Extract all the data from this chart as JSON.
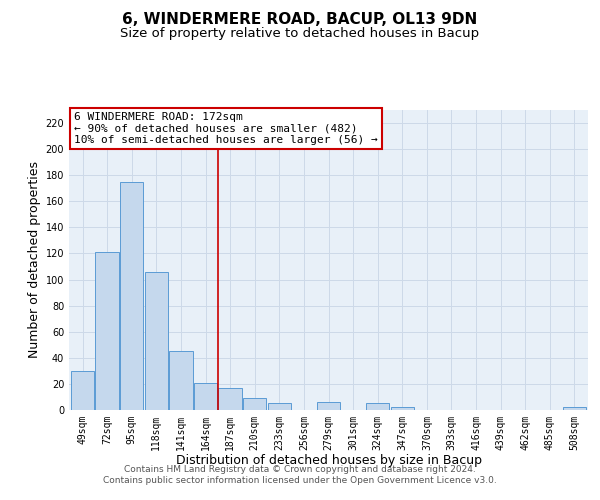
{
  "title": "6, WINDERMERE ROAD, BACUP, OL13 9DN",
  "subtitle": "Size of property relative to detached houses in Bacup",
  "xlabel": "Distribution of detached houses by size in Bacup",
  "ylabel": "Number of detached properties",
  "bin_labels": [
    "49sqm",
    "72sqm",
    "95sqm",
    "118sqm",
    "141sqm",
    "164sqm",
    "187sqm",
    "210sqm",
    "233sqm",
    "256sqm",
    "279sqm",
    "301sqm",
    "324sqm",
    "347sqm",
    "370sqm",
    "393sqm",
    "416sqm",
    "439sqm",
    "462sqm",
    "485sqm",
    "508sqm"
  ],
  "bar_heights": [
    30,
    121,
    175,
    106,
    45,
    21,
    17,
    9,
    5,
    0,
    6,
    0,
    5,
    2,
    0,
    0,
    0,
    0,
    0,
    0,
    2
  ],
  "bar_color": "#c5d8ed",
  "bar_edgecolor": "#5b9bd5",
  "vline_color": "#cc0000",
  "vline_pos": 5.5,
  "annotation_line1": "6 WINDERMERE ROAD: 172sqm",
  "annotation_line2": "← 90% of detached houses are smaller (482)",
  "annotation_line3": "10% of semi-detached houses are larger (56) →",
  "annotation_box_color": "#cc0000",
  "ylim": [
    0,
    230
  ],
  "yticks": [
    0,
    20,
    40,
    60,
    80,
    100,
    120,
    140,
    160,
    180,
    200,
    220
  ],
  "grid_color": "#cdd9e8",
  "background_color": "#e8f0f8",
  "footer_line1": "Contains HM Land Registry data © Crown copyright and database right 2024.",
  "footer_line2": "Contains public sector information licensed under the Open Government Licence v3.0.",
  "title_fontsize": 11,
  "subtitle_fontsize": 9.5,
  "label_fontsize": 9,
  "tick_fontsize": 7,
  "annotation_fontsize": 8,
  "footer_fontsize": 6.5
}
